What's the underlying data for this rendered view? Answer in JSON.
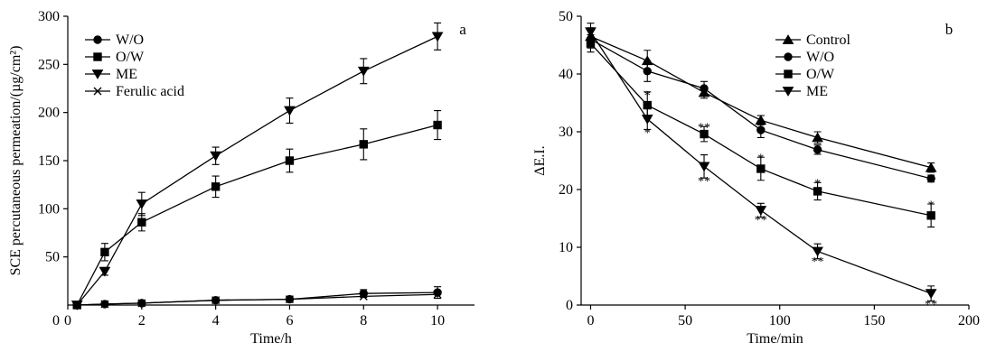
{
  "chart_data": [
    {
      "type": "line",
      "panel_label": "a",
      "xlabel": "Time/h",
      "ylabel": "SCE percutaneous permeation/(µg/cm²)",
      "xlim": [
        0,
        11
      ],
      "ylim": [
        0,
        300
      ],
      "xticks": [
        0,
        2,
        4,
        6,
        8,
        10
      ],
      "yticks": [
        50,
        100,
        150,
        200,
        250,
        300
      ],
      "yticks_labels": [
        "50",
        "100",
        "150",
        "200",
        "250",
        "300"
      ],
      "origin_label": "0",
      "legend_position": "top-left",
      "series": [
        {
          "name": "W/O",
          "marker": "circle",
          "x": [
            0.25,
            1,
            2,
            4,
            6,
            8,
            10
          ],
          "y": [
            0,
            1,
            2,
            5,
            6,
            12,
            13
          ],
          "err": [
            2,
            3,
            2,
            2,
            3,
            4,
            6
          ]
        },
        {
          "name": "O/W",
          "marker": "square",
          "x": [
            0.25,
            1,
            2,
            4,
            6,
            8,
            10
          ],
          "y": [
            0,
            55,
            86,
            123,
            150,
            167,
            187
          ],
          "err": [
            3,
            9,
            9,
            11,
            12,
            16,
            15
          ]
        },
        {
          "name": "ME",
          "marker": "triangle-down",
          "x": [
            0.25,
            1,
            2,
            4,
            6,
            8,
            10
          ],
          "y": [
            0,
            35,
            105,
            155,
            202,
            243,
            279
          ],
          "err": [
            2,
            4,
            12,
            9,
            13,
            13,
            14
          ]
        },
        {
          "name": "Ferulic acid",
          "marker": "x",
          "x": [
            0.25,
            1,
            2,
            4,
            6,
            8,
            10
          ],
          "y": [
            0,
            1,
            2,
            5,
            6,
            9,
            11
          ],
          "err": [
            0,
            0,
            0,
            0,
            0,
            0,
            0
          ]
        }
      ]
    },
    {
      "type": "line",
      "panel_label": "b",
      "xlabel": "Time/min",
      "ylabel": "ΔE.I.",
      "xlim": [
        -5,
        200
      ],
      "ylim": [
        0,
        50
      ],
      "xticks": [
        0,
        50,
        100,
        150,
        200
      ],
      "yticks": [
        0,
        10,
        20,
        30,
        40,
        50
      ],
      "legend_position": "top-right",
      "series": [
        {
          "name": "Control",
          "marker": "triangle-up",
          "x": [
            0,
            30,
            60,
            90,
            120,
            180
          ],
          "y": [
            46.5,
            42.3,
            36.8,
            32.0,
            29.0,
            23.8
          ],
          "err": [
            1.5,
            1.8,
            1.0,
            0.8,
            1.0,
            0.8
          ]
        },
        {
          "name": "W/O",
          "marker": "circle",
          "x": [
            0,
            30,
            60,
            90,
            120,
            180
          ],
          "y": [
            46.0,
            40.5,
            37.5,
            30.3,
            26.9,
            21.9
          ],
          "err": [
            1.5,
            1.8,
            1.2,
            1.3,
            0.8,
            0.6
          ]
        },
        {
          "name": "O/W",
          "marker": "square",
          "x": [
            0,
            30,
            60,
            90,
            120,
            180
          ],
          "y": [
            45.3,
            34.6,
            29.6,
            23.6,
            19.7,
            15.5
          ],
          "err": [
            1.5,
            2.3,
            1.3,
            2.0,
            1.5,
            2.0
          ]
        },
        {
          "name": "ME",
          "marker": "triangle-down",
          "x": [
            0,
            30,
            60,
            90,
            120,
            180
          ],
          "y": [
            47.3,
            32.2,
            24.0,
            16.4,
            9.3,
            2.0
          ],
          "err": [
            1.5,
            1.8,
            2.0,
            1.2,
            1.3,
            1.3
          ]
        }
      ],
      "annotations": [
        {
          "x": 30,
          "y": 36.6,
          "text": "*"
        },
        {
          "x": 30,
          "y": 30.1,
          "text": "*"
        },
        {
          "x": 60,
          "y": 31.0,
          "text": "**"
        },
        {
          "x": 60,
          "y": 21.7,
          "text": "**"
        },
        {
          "x": 90,
          "y": 25.7,
          "text": "*"
        },
        {
          "x": 90,
          "y": 15.0,
          "text": "**"
        },
        {
          "x": 120,
          "y": 21.3,
          "text": "*"
        },
        {
          "x": 120,
          "y": 7.8,
          "text": "**"
        },
        {
          "x": 180,
          "y": 17.6,
          "text": "*"
        },
        {
          "x": 180,
          "y": 0.4,
          "text": "**"
        }
      ]
    }
  ]
}
